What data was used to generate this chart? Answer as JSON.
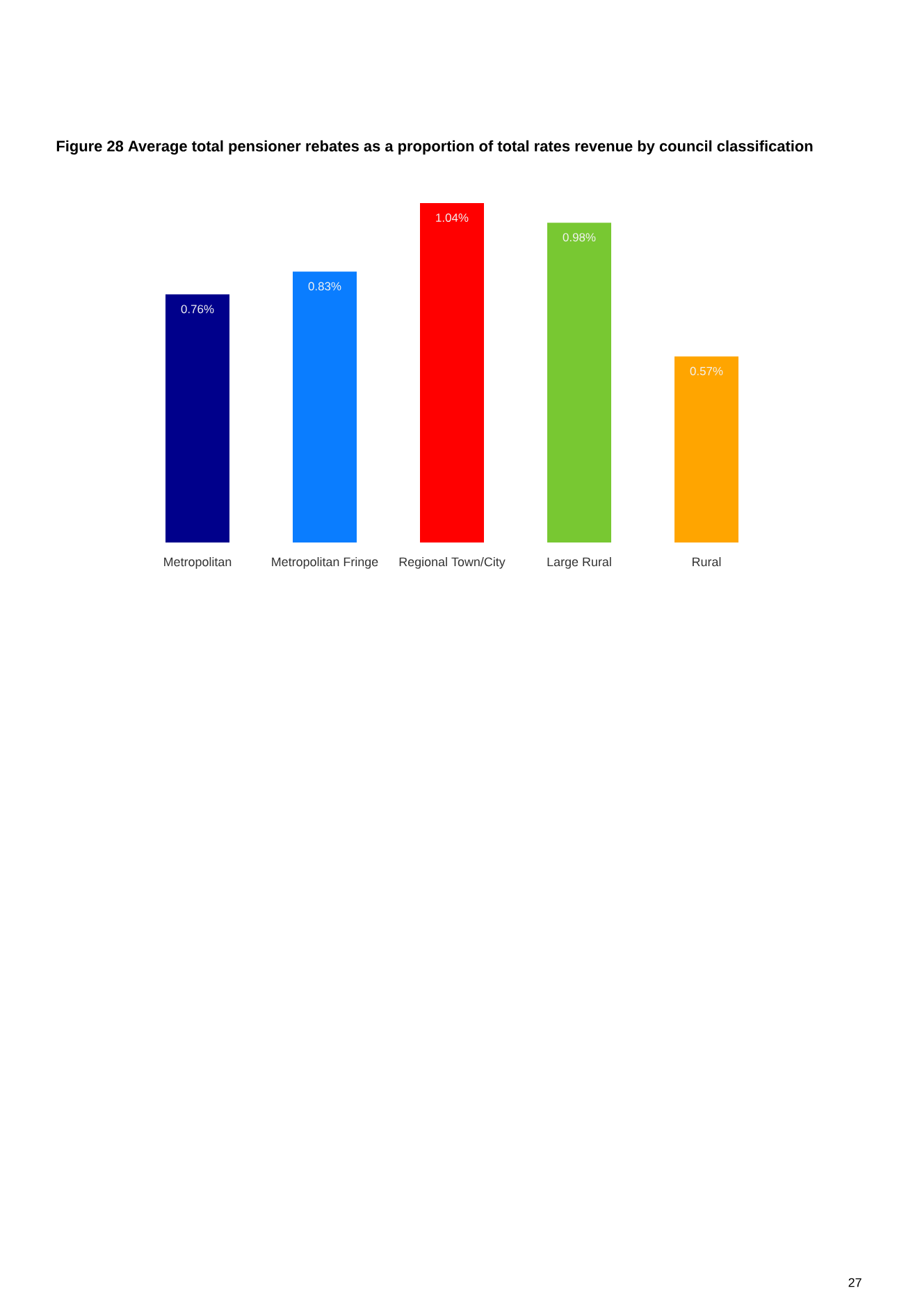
{
  "chart_data": {
    "type": "bar",
    "title": "Figure 28  Average total pensioner rebates as a proportion of total rates revenue by council classification",
    "categories": [
      "Metropolitan",
      "Metropolitan Fringe",
      "Regional Town/City",
      "Large Rural",
      "Rural"
    ],
    "values": [
      0.76,
      0.83,
      1.04,
      0.98,
      0.57
    ],
    "colors": [
      "#00008b",
      "#0a7dff",
      "#ff0000",
      "#78c832",
      "#ffa500"
    ],
    "value_labels": [
      "0.76%",
      "0.83%",
      "1.04%",
      "0.98%",
      "0.57%"
    ],
    "annotations": [
      "27"
    ]
  }
}
